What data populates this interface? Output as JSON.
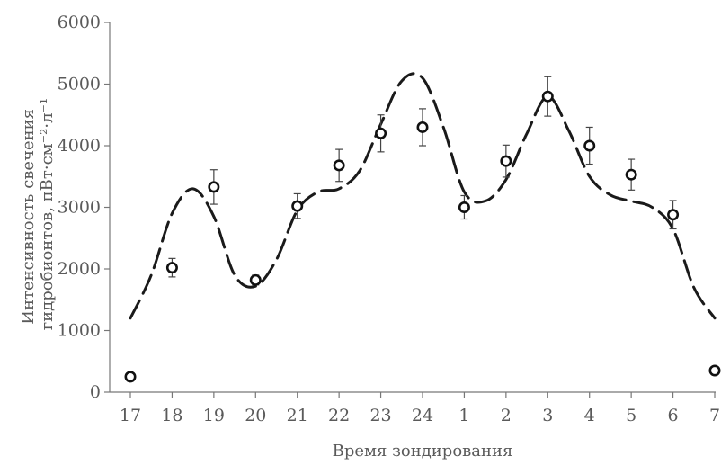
{
  "chart_data": {
    "type": "scatter",
    "title": "",
    "xlabel": "Время зондирования",
    "ylabel_lines": [
      "Интенсивность свечения",
      "гидробионтов, пВт·см⁻²·л⁻¹"
    ],
    "categories": [
      "17",
      "18",
      "19",
      "20",
      "21",
      "22",
      "23",
      "24",
      "1",
      "2",
      "3",
      "4",
      "5",
      "6",
      "7"
    ],
    "y_ticks": [
      "0",
      "1000",
      "2000",
      "3000",
      "4000",
      "5000",
      "6000"
    ],
    "ylim": [
      0,
      6000
    ],
    "grid": false,
    "legend": "none",
    "series": [
      {
        "kind": "points_with_error_bars",
        "values": [
          250,
          2020,
          3330,
          1820,
          3020,
          3680,
          4200,
          4300,
          3000,
          3750,
          4800,
          4000,
          3530,
          2880,
          350
        ],
        "errors": [
          0,
          150,
          280,
          80,
          200,
          260,
          300,
          300,
          190,
          260,
          320,
          300,
          250,
          230,
          0
        ]
      },
      {
        "kind": "fitted_curve",
        "style": "dashed",
        "x": [
          0,
          0.5,
          1.0,
          1.5,
          2.0,
          2.5,
          3.0,
          3.5,
          4.0,
          4.5,
          5.0,
          5.5,
          6.0,
          6.5,
          7.0,
          7.5,
          8.0,
          8.5,
          9.0,
          9.5,
          10.0,
          10.5,
          11.0,
          11.5,
          12.0,
          12.5,
          13.0,
          13.5,
          14.0
        ],
        "y": [
          1200,
          1900,
          2900,
          3300,
          2850,
          1900,
          1720,
          2150,
          2950,
          3250,
          3300,
          3600,
          4350,
          5050,
          5100,
          4300,
          3250,
          3100,
          3450,
          4200,
          4800,
          4250,
          3500,
          3200,
          3100,
          3000,
          2650,
          1700,
          1200
        ]
      }
    ]
  }
}
